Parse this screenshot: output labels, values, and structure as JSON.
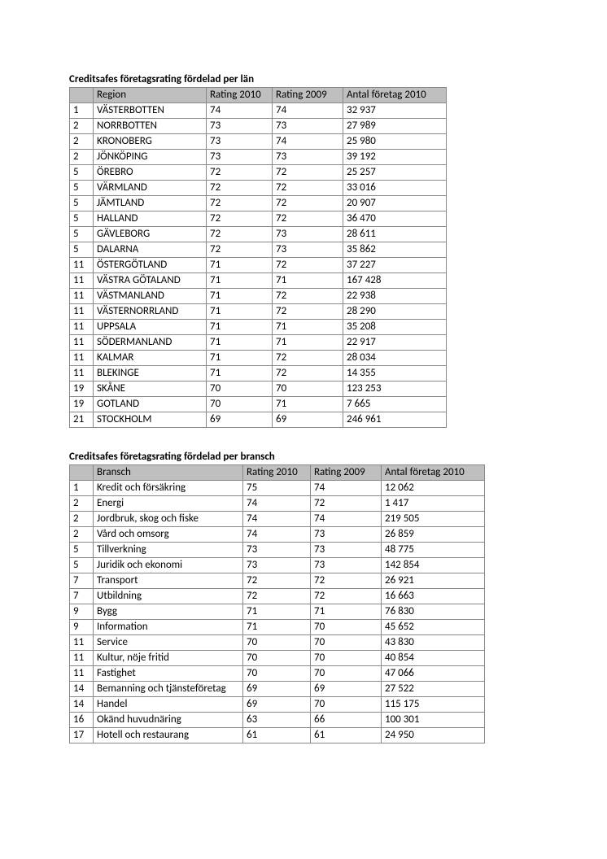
{
  "table1": {
    "title": "Creditsafes företagsrating fördelad per län",
    "columns": [
      "",
      "Region",
      "Rating 2010",
      "Rating 2009",
      "Antal företag 2010"
    ],
    "rows": [
      [
        "1",
        "VÄSTERBOTTEN",
        "74",
        "74",
        "32 937"
      ],
      [
        "2",
        "NORRBOTTEN",
        "73",
        "73",
        "27 989"
      ],
      [
        "2",
        "KRONOBERG",
        "73",
        "74",
        "25 980"
      ],
      [
        "2",
        "JÖNKÖPING",
        "73",
        "73",
        "39 192"
      ],
      [
        "5",
        "ÖREBRO",
        "72",
        "72",
        "25 257"
      ],
      [
        "5",
        "VÄRMLAND",
        "72",
        "72",
        "33 016"
      ],
      [
        "5",
        "JÄMTLAND",
        "72",
        "72",
        "20 907"
      ],
      [
        "5",
        "HALLAND",
        "72",
        "72",
        "36 470"
      ],
      [
        "5",
        "GÄVLEBORG",
        "72",
        "73",
        "28 611"
      ],
      [
        "5",
        "DALARNA",
        "72",
        "73",
        "35 862"
      ],
      [
        "11",
        "ÖSTERGÖTLAND",
        "71",
        "72",
        "37 227"
      ],
      [
        "11",
        "VÄSTRA GÖTALAND",
        "71",
        "71",
        "167 428"
      ],
      [
        "11",
        "VÄSTMANLAND",
        "71",
        "72",
        "22 938"
      ],
      [
        "11",
        "VÄSTERNORRLAND",
        "71",
        "72",
        "28 290"
      ],
      [
        "11",
        "UPPSALA",
        "71",
        "71",
        "35 208"
      ],
      [
        "11",
        "SÖDERMANLAND",
        "71",
        "71",
        "22 917"
      ],
      [
        "11",
        "KALMAR",
        "71",
        "72",
        "28 034"
      ],
      [
        "11",
        "BLEKINGE",
        "71",
        "72",
        "14 355"
      ],
      [
        "19",
        "SKÅNE",
        "70",
        "70",
        "123 253"
      ],
      [
        "19",
        "GOTLAND",
        "70",
        "71",
        "7 665"
      ],
      [
        "21",
        "STOCKHOLM",
        "69",
        "69",
        "246 961"
      ]
    ]
  },
  "table2": {
    "title": "Creditsafes företagsrating fördelad per bransch",
    "columns": [
      "",
      "Bransch",
      "Rating 2010",
      "Rating 2009",
      "Antal företag 2010"
    ],
    "rows": [
      [
        "1",
        "Kredit och försäkring",
        "75",
        "74",
        "12 062"
      ],
      [
        "2",
        "Energi",
        "74",
        "72",
        "1 417"
      ],
      [
        "2",
        "Jordbruk, skog och fiske",
        "74",
        "74",
        "219 505"
      ],
      [
        "2",
        "Vård och omsorg",
        "74",
        "73",
        "26 859"
      ],
      [
        "5",
        "Tillverkning",
        "73",
        "73",
        "48 775"
      ],
      [
        "5",
        "Juridik och ekonomi",
        "73",
        "73",
        "142 854"
      ],
      [
        "7",
        "Transport",
        "72",
        "72",
        "26 921"
      ],
      [
        "7",
        "Utbildning",
        "72",
        "72",
        "16 663"
      ],
      [
        "9",
        "Bygg",
        "71",
        "71",
        "76 830"
      ],
      [
        "9",
        "Information",
        "71",
        "70",
        "45 652"
      ],
      [
        "11",
        "Service",
        "70",
        "70",
        "43 830"
      ],
      [
        "11",
        "Kultur, nöje fritid",
        "70",
        "70",
        "40 854"
      ],
      [
        "11",
        "Fastighet",
        "70",
        "70",
        "47 066"
      ],
      [
        "14",
        "Bemanning och tjänsteföretag",
        "69",
        "69",
        "27 522"
      ],
      [
        "14",
        "Handel",
        "69",
        "70",
        "115 175"
      ],
      [
        "16",
        "Okänd huvudnäring",
        "63",
        "66",
        "100 301"
      ],
      [
        "17",
        "Hotell och restaurang",
        "61",
        "61",
        "24 950"
      ]
    ]
  }
}
